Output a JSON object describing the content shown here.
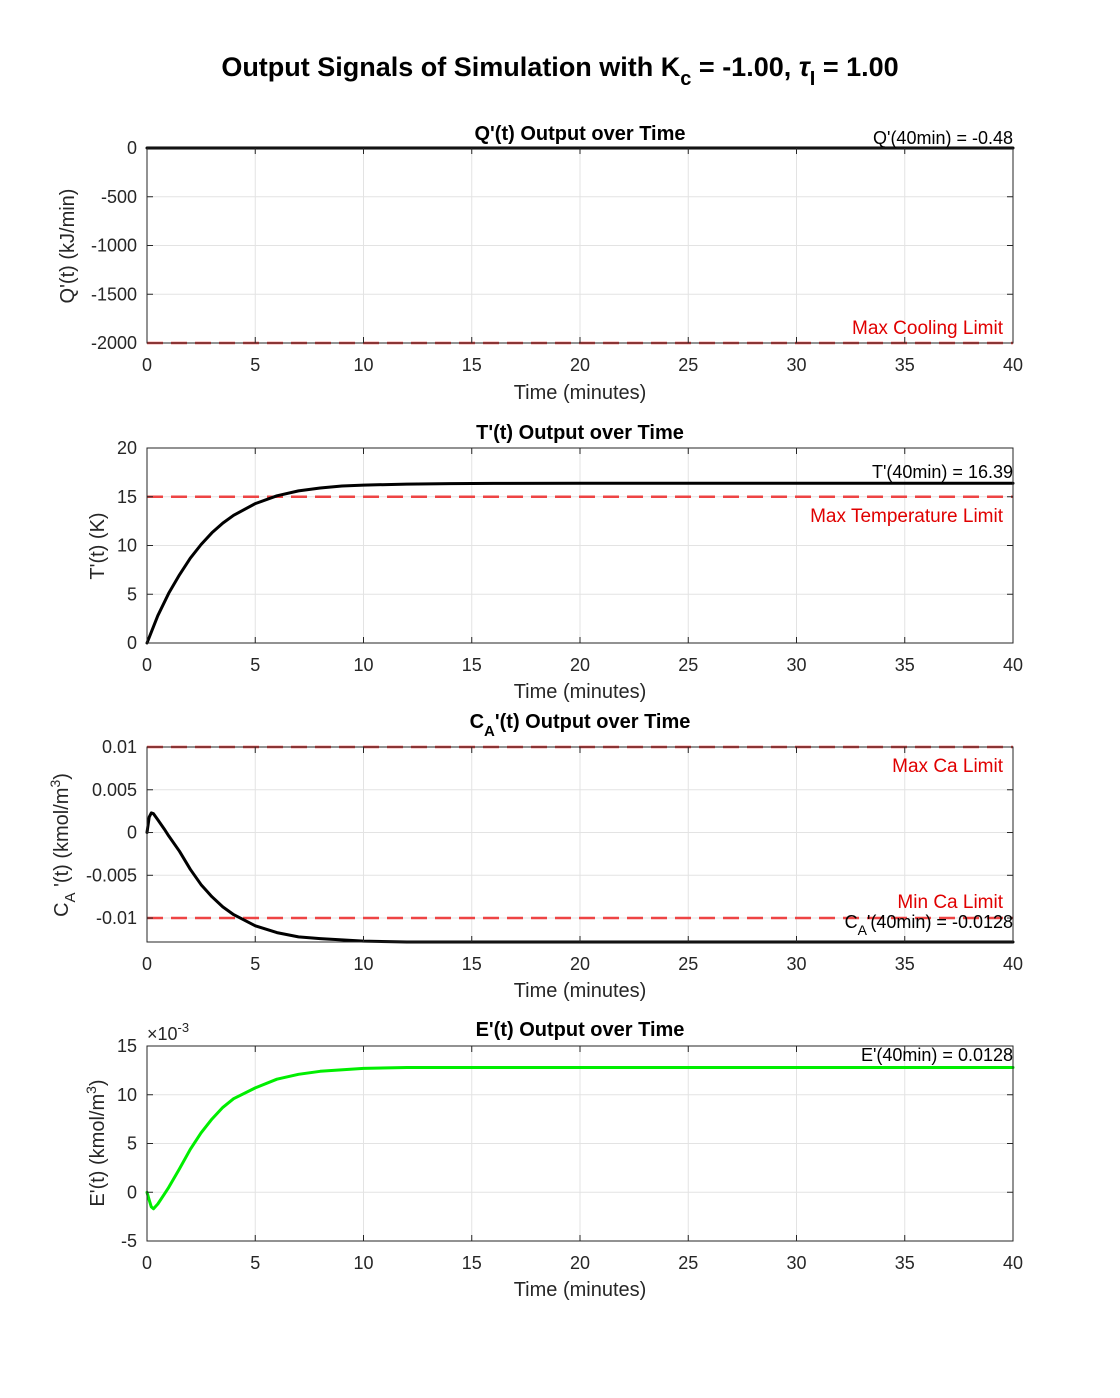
{
  "figure": {
    "suptitle": {
      "prefix": "Output Signals of Simulation with K",
      "sub1": "c",
      "mid": " = -1.00, ",
      "tau": "τ",
      "sub2": "I",
      "suffix": " = 1.00"
    }
  },
  "chart_data": [
    {
      "type": "line",
      "title": "Q'(t) Output over Time",
      "xlabel": "Time (minutes)",
      "ylabel": "Q'(t) (kJ/min)",
      "xlim": [
        0,
        40
      ],
      "ylim": [
        -2000,
        0
      ],
      "xticks": [
        0,
        5,
        10,
        15,
        20,
        25,
        30,
        35,
        40
      ],
      "yticks": [
        -2000,
        -1500,
        -1000,
        -500,
        0
      ],
      "ytick_labels": [
        "-2000",
        "-1500",
        "-1000",
        "-500",
        "0"
      ],
      "grid": true,
      "series": [
        {
          "color": "#000000",
          "x": [
            0,
            40
          ],
          "y": [
            0,
            -0.48
          ]
        }
      ],
      "limits": [
        {
          "value": -2000,
          "label": "Max Cooling Limit",
          "label_position": "above-right"
        }
      ],
      "final_annotation": "Q'(40min) = -0.48",
      "final_value": -0.48
    },
    {
      "type": "line",
      "title": "T'(t) Output over Time",
      "xlabel": "Time (minutes)",
      "ylabel": "T'(t) (K)",
      "xlim": [
        0,
        40
      ],
      "ylim": [
        0,
        20
      ],
      "xticks": [
        0,
        5,
        10,
        15,
        20,
        25,
        30,
        35,
        40
      ],
      "yticks": [
        0,
        5,
        10,
        15,
        20
      ],
      "ytick_labels": [
        "0",
        "5",
        "10",
        "15",
        "20"
      ],
      "grid": true,
      "series": [
        {
          "color": "#000000",
          "x": [
            0,
            0.5,
            1,
            1.5,
            2,
            2.5,
            3,
            3.5,
            4,
            5,
            6,
            7,
            8,
            9,
            10,
            12,
            14,
            16,
            20,
            25,
            30,
            35,
            40
          ],
          "y": [
            0,
            2.8,
            5.1,
            7.0,
            8.7,
            10.1,
            11.3,
            12.3,
            13.1,
            14.3,
            15.1,
            15.6,
            15.9,
            16.1,
            16.2,
            16.3,
            16.35,
            16.37,
            16.39,
            16.39,
            16.39,
            16.39,
            16.39
          ]
        }
      ],
      "limits": [
        {
          "value": 15,
          "label": "Max Temperature Limit",
          "label_position": "below-right"
        }
      ],
      "final_annotation": "T'(40min) = 16.39",
      "final_value": 16.39
    },
    {
      "type": "line",
      "title_main": "'(t) Output over Time",
      "title_prefix": "C",
      "title_sub": "A",
      "xlabel": "Time (minutes)",
      "ylabel_prefix": "C",
      "ylabel_sub": "A",
      "ylabel_main": " '(t) (kmol/m",
      "ylabel_sup": "3",
      "ylabel_suffix": ")",
      "xlim": [
        0,
        40
      ],
      "ylim": [
        -0.0128,
        0.01
      ],
      "xticks": [
        0,
        5,
        10,
        15,
        20,
        25,
        30,
        35,
        40
      ],
      "yticks": [
        -0.01,
        -0.005,
        0,
        0.005,
        0.01
      ],
      "ytick_labels": [
        "-0.01",
        "-0.005",
        "0",
        "0.005",
        "0.01"
      ],
      "grid": true,
      "series": [
        {
          "color": "#000000",
          "x": [
            0,
            0.1,
            0.2,
            0.3,
            0.5,
            0.8,
            1,
            1.5,
            2,
            2.5,
            3,
            3.5,
            4,
            5,
            6,
            7,
            8,
            10,
            12,
            15,
            20,
            30,
            40
          ],
          "y": [
            0,
            0.0018,
            0.0023,
            0.0022,
            0.0015,
            0.0004,
            -0.0004,
            -0.0022,
            -0.0043,
            -0.0061,
            -0.0075,
            -0.0087,
            -0.0096,
            -0.0109,
            -0.0117,
            -0.0122,
            -0.0124,
            -0.0127,
            -0.0128,
            -0.0128,
            -0.0128,
            -0.0128,
            -0.0128
          ]
        }
      ],
      "limits": [
        {
          "value": 0.01,
          "label": "Max Ca Limit",
          "label_position": "below-right"
        },
        {
          "value": -0.01,
          "label": "Min Ca Limit",
          "label_position": "above-right"
        }
      ],
      "final_annotation_prefix": "C",
      "final_annotation_sub": "A",
      "final_annotation_main": "'(40min) = -0.0128",
      "final_value": -0.0128
    },
    {
      "type": "line",
      "title": "E'(t) Output over Time",
      "xlabel": "Time (minutes)",
      "ylabel_main": "E'(t) (kmol/m",
      "ylabel_sup": "3",
      "ylabel_suffix": ")",
      "y_exponent_base": "×10",
      "y_exponent_power": "-3",
      "xlim": [
        0,
        40
      ],
      "ylim": [
        -0.005,
        0.015
      ],
      "xticks": [
        0,
        5,
        10,
        15,
        20,
        25,
        30,
        35,
        40
      ],
      "yticks": [
        -0.005,
        0,
        0.005,
        0.01,
        0.015
      ],
      "ytick_labels": [
        "-5",
        "0",
        "5",
        "10",
        "15"
      ],
      "grid": true,
      "series": [
        {
          "color": "#00ee00",
          "x": [
            0,
            0.1,
            0.2,
            0.3,
            0.5,
            0.8,
            1,
            1.5,
            2,
            2.5,
            3,
            3.5,
            4,
            5,
            6,
            7,
            8,
            10,
            12,
            15,
            20,
            30,
            40
          ],
          "y": [
            0,
            -0.0008,
            -0.0015,
            -0.0017,
            -0.0012,
            -0.0002,
            0.0005,
            0.0024,
            0.0044,
            0.0061,
            0.0075,
            0.0087,
            0.0096,
            0.0107,
            0.0116,
            0.0121,
            0.0124,
            0.0127,
            0.0128,
            0.0128,
            0.0128,
            0.0128,
            0.0128
          ]
        }
      ],
      "limits": [],
      "final_annotation": "E'(40min) = 0.0128",
      "final_value": 0.0128
    }
  ]
}
